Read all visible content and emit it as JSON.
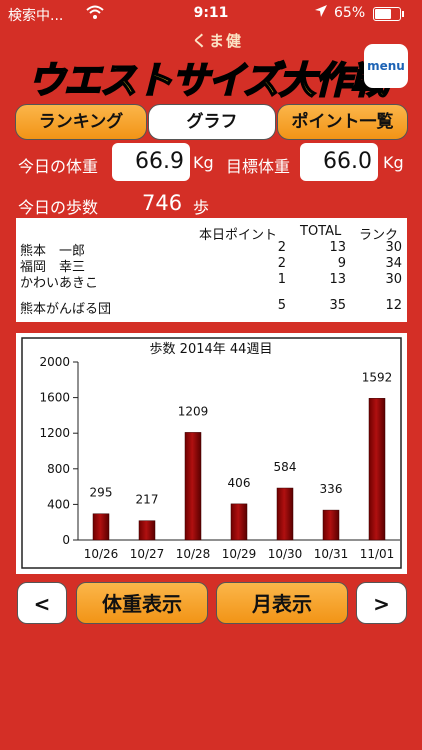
{
  "status_bar": {
    "carrier": "検索中...",
    "time": "9:11",
    "battery": "65%",
    "battery_level": 0.65
  },
  "header": {
    "brand": "くま健",
    "title": "ウエストサイズ大作戦",
    "menu_label": "menu"
  },
  "tabs": [
    {
      "label": "ランキング"
    },
    {
      "label": "グラフ"
    },
    {
      "label": "ポイント一覧"
    }
  ],
  "weight": {
    "today_label": "今日の体重",
    "today_value": "66.9",
    "unit": "Kg",
    "target_label": "目標体重",
    "target_value": "66.0"
  },
  "steps": {
    "label": "今日の歩数",
    "value": "746",
    "unit": "歩"
  },
  "table": {
    "headers": [
      "本日ポイント",
      "TOTAL",
      "ランク"
    ],
    "rows": [
      {
        "name": "熊本　一郎",
        "points": "2",
        "total": "13",
        "rank": "30"
      },
      {
        "name": "福岡　幸三",
        "points": "2",
        "total": "9",
        "rank": "34"
      },
      {
        "name": "かわいあきこ",
        "points": "1",
        "total": "13",
        "rank": "30"
      }
    ],
    "team": {
      "name": "熊本がんばる団",
      "points": "5",
      "total": "35",
      "rank": "12"
    }
  },
  "chart_data": {
    "type": "bar",
    "title": "歩数 2014年 44週目",
    "categories": [
      "10/26",
      "10/27",
      "10/28",
      "10/29",
      "10/30",
      "10/31",
      "11/01"
    ],
    "values": [
      295,
      217,
      1209,
      406,
      584,
      336,
      1592
    ],
    "ylim": [
      0,
      2000
    ],
    "yticks": [
      0,
      400,
      800,
      1200,
      1600,
      2000
    ],
    "xlabel": "",
    "ylabel": "",
    "bar_color": "#b01010",
    "grid": false
  },
  "bottom": {
    "prev": "<",
    "weight_display": "体重表示",
    "month_display": "月表示",
    "next": ">"
  },
  "colors": {
    "background": "#d42f26",
    "accent": "#f29416",
    "logo": "#ffd21f"
  }
}
